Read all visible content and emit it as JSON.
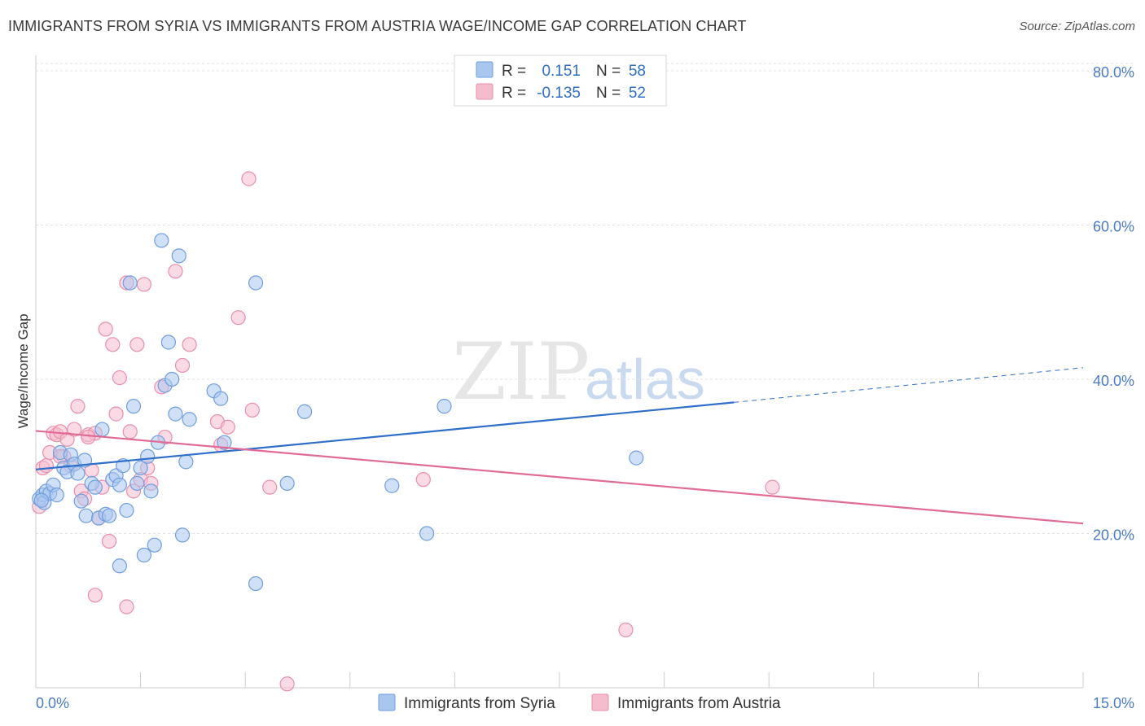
{
  "header": {
    "title": "IMMIGRANTS FROM SYRIA VS IMMIGRANTS FROM AUSTRIA WAGE/INCOME GAP CORRELATION CHART",
    "source": "Source: ZipAtlas.com"
  },
  "watermark": {
    "zip": "ZIP",
    "atlas": "atlas"
  },
  "colors": {
    "syria_fill": "#a9c6ef",
    "syria_stroke": "#6f9ee0",
    "syria_line": "#2f6fc9",
    "austria_fill": "#f5bccd",
    "austria_stroke": "#e98fab",
    "austria_line": "#e06b96",
    "grid": "#e3e3e3",
    "tick_text": "#4a7bc8"
  },
  "legend": {
    "rows": [
      {
        "r_label": "R =",
        "r_value": "0.151",
        "n_label": "N =",
        "n_value": "58"
      },
      {
        "r_label": "R =",
        "r_value": "-0.135",
        "n_label": "N =",
        "n_value": "52"
      }
    ]
  },
  "chart_data": {
    "type": "scatter",
    "title": "IMMIGRANTS FROM SYRIA VS IMMIGRANTS FROM AUSTRIA WAGE/INCOME GAP CORRELATION CHART",
    "xlabel": "",
    "ylabel": "Wage/Income Gap",
    "xlim": [
      0,
      15
    ],
    "ylim": [
      0,
      82
    ],
    "x_tick_labels": [
      "0.0%",
      "15.0%"
    ],
    "y_ticks": [
      20,
      40,
      60,
      80
    ],
    "y_tick_labels": [
      "20.0%",
      "40.0%",
      "60.0%",
      "80.0%"
    ],
    "grid": true,
    "legend_position": "top-center",
    "series": [
      {
        "name": "Immigrants from Syria",
        "r": 0.151,
        "n": 58,
        "trend": {
          "x_start": 0.0,
          "y_start": 28.3,
          "x_end": 10.0,
          "y_end": 37.0,
          "dashed_to_x": 15.0,
          "dashed_to_y": 41.5
        },
        "points": [
          [
            0.05,
            24.5
          ],
          [
            0.1,
            25.0
          ],
          [
            0.12,
            24.0
          ],
          [
            0.15,
            25.5
          ],
          [
            0.2,
            25.2
          ],
          [
            0.25,
            26.3
          ],
          [
            0.3,
            25.0
          ],
          [
            0.35,
            30.5
          ],
          [
            0.4,
            28.5
          ],
          [
            0.45,
            28.0
          ],
          [
            0.5,
            30.2
          ],
          [
            0.55,
            29.0
          ],
          [
            0.6,
            27.8
          ],
          [
            0.65,
            24.2
          ],
          [
            0.7,
            29.5
          ],
          [
            0.72,
            22.3
          ],
          [
            0.8,
            26.5
          ],
          [
            0.85,
            26.0
          ],
          [
            0.9,
            22.0
          ],
          [
            0.95,
            33.5
          ],
          [
            1.0,
            22.5
          ],
          [
            1.05,
            22.3
          ],
          [
            1.1,
            27.0
          ],
          [
            1.15,
            27.5
          ],
          [
            1.2,
            26.3
          ],
          [
            1.25,
            28.8
          ],
          [
            1.3,
            23.0
          ],
          [
            1.35,
            52.5
          ],
          [
            1.4,
            36.5
          ],
          [
            1.45,
            26.5
          ],
          [
            1.5,
            28.5
          ],
          [
            1.55,
            17.2
          ],
          [
            1.6,
            30.0
          ],
          [
            1.65,
            25.5
          ],
          [
            1.7,
            18.5
          ],
          [
            1.75,
            31.8
          ],
          [
            1.8,
            58.0
          ],
          [
            1.85,
            39.2
          ],
          [
            1.9,
            44.8
          ],
          [
            1.95,
            40.0
          ],
          [
            2.0,
            35.5
          ],
          [
            2.05,
            56.0
          ],
          [
            2.1,
            19.8
          ],
          [
            2.15,
            29.3
          ],
          [
            2.2,
            34.8
          ],
          [
            1.2,
            15.8
          ],
          [
            2.55,
            38.5
          ],
          [
            2.65,
            37.5
          ],
          [
            2.7,
            31.8
          ],
          [
            3.15,
            52.5
          ],
          [
            3.15,
            13.5
          ],
          [
            3.6,
            26.5
          ],
          [
            3.85,
            35.8
          ],
          [
            5.1,
            26.2
          ],
          [
            5.6,
            20.0
          ],
          [
            5.85,
            36.5
          ],
          [
            8.6,
            29.8
          ],
          [
            0.08,
            24.3
          ]
        ]
      },
      {
        "name": "Immigrants from Austria",
        "r": -0.135,
        "n": 52,
        "trend": {
          "x_start": 0.0,
          "y_start": 33.3,
          "x_end": 15.0,
          "y_end": 21.3
        },
        "points": [
          [
            0.05,
            23.5
          ],
          [
            0.1,
            28.5
          ],
          [
            0.15,
            28.8
          ],
          [
            0.2,
            30.5
          ],
          [
            0.25,
            33.0
          ],
          [
            0.3,
            32.8
          ],
          [
            0.35,
            33.2
          ],
          [
            0.4,
            30.0
          ],
          [
            0.45,
            32.2
          ],
          [
            0.5,
            28.8
          ],
          [
            0.55,
            33.5
          ],
          [
            0.6,
            36.5
          ],
          [
            0.65,
            25.5
          ],
          [
            0.7,
            24.5
          ],
          [
            0.75,
            32.8
          ],
          [
            0.8,
            28.2
          ],
          [
            0.85,
            33.0
          ],
          [
            0.9,
            22.0
          ],
          [
            0.95,
            26.0
          ],
          [
            1.0,
            46.5
          ],
          [
            1.05,
            19.0
          ],
          [
            1.1,
            44.5
          ],
          [
            1.15,
            35.5
          ],
          [
            1.2,
            40.2
          ],
          [
            1.3,
            52.5
          ],
          [
            1.35,
            33.2
          ],
          [
            1.4,
            25.5
          ],
          [
            1.45,
            44.5
          ],
          [
            1.5,
            27.0
          ],
          [
            1.55,
            52.3
          ],
          [
            1.6,
            28.5
          ],
          [
            1.65,
            26.5
          ],
          [
            1.8,
            39.0
          ],
          [
            1.85,
            32.5
          ],
          [
            2.0,
            54.0
          ],
          [
            2.1,
            41.8
          ],
          [
            2.2,
            44.5
          ],
          [
            2.6,
            34.5
          ],
          [
            2.65,
            31.5
          ],
          [
            2.75,
            33.8
          ],
          [
            2.9,
            48.0
          ],
          [
            3.05,
            66.0
          ],
          [
            3.1,
            36.0
          ],
          [
            3.35,
            26.0
          ],
          [
            3.6,
            0.5
          ],
          [
            0.85,
            12.0
          ],
          [
            1.3,
            10.5
          ],
          [
            5.55,
            27.0
          ],
          [
            8.45,
            7.5
          ],
          [
            10.55,
            26.0
          ],
          [
            0.35,
            30.0
          ],
          [
            0.75,
            32.5
          ]
        ]
      }
    ]
  }
}
